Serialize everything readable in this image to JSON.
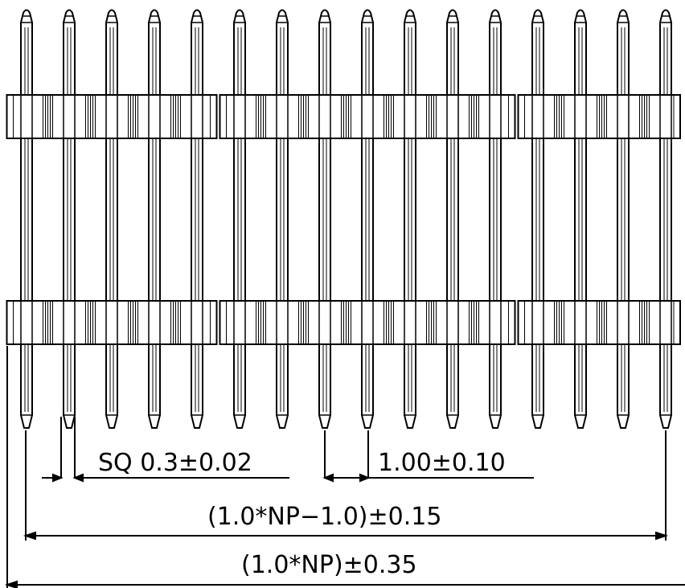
{
  "drawing": {
    "pin_count": 16,
    "gap_after_pins": [
      5,
      12
    ],
    "line_color": "#000000",
    "background": "#ffffff"
  },
  "dimensions": {
    "pin_size": "SQ  0.3±0.02",
    "pitch": "1.00±0.10",
    "pin_span": "(1.0*NP−1.0)±0.15",
    "overall_length": "(1.0*NP)±0.35"
  }
}
